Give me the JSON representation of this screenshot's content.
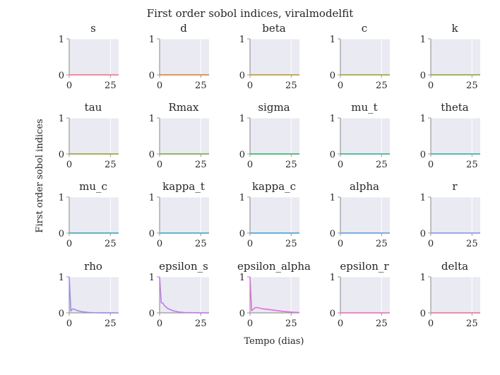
{
  "figure": {
    "title": "First order sobol indices, viralmodelfit",
    "xlabel": "Tempo (dias)",
    "ylabel": "First order sobol indices"
  },
  "style": {
    "panel_background": "#eaeaf2",
    "grid_color": "#ffffff",
    "axis_color": "#9a9a9a"
  },
  "chart_data": {
    "type": "line",
    "grid": true,
    "xlim": [
      0,
      30
    ],
    "ylim": [
      0,
      1
    ],
    "x_ticks": [
      0,
      25
    ],
    "y_ticks": [
      0,
      1
    ],
    "x": [
      0,
      1,
      2,
      3,
      4,
      5,
      6,
      7,
      8,
      10,
      12,
      15,
      20,
      25,
      30
    ],
    "panels": [
      {
        "name": "s",
        "color": "#f77189",
        "values": [
          0,
          0,
          0,
          0,
          0,
          0,
          0,
          0,
          0,
          0,
          0,
          0,
          0,
          0,
          0
        ]
      },
      {
        "name": "d",
        "color": "#e08030",
        "values": [
          0,
          0,
          0,
          0,
          0,
          0,
          0,
          0,
          0,
          0,
          0,
          0,
          0,
          0,
          0
        ]
      },
      {
        "name": "beta",
        "color": "#bb9832",
        "values": [
          0,
          0,
          0,
          0,
          0,
          0,
          0,
          0,
          0,
          0,
          0,
          0,
          0,
          0,
          0
        ]
      },
      {
        "name": "c",
        "color": "#a4a031",
        "values": [
          0,
          0,
          0,
          0,
          0,
          0,
          0,
          0,
          0,
          0,
          0,
          0,
          0,
          0,
          0
        ]
      },
      {
        "name": "k",
        "color": "#8aa831",
        "values": [
          0,
          0,
          0,
          0,
          0,
          0,
          0,
          0,
          0,
          0,
          0,
          0,
          0,
          0,
          0
        ]
      },
      {
        "name": "tau",
        "color": "#97a431",
        "values": [
          0,
          0,
          0,
          0,
          0,
          0,
          0,
          0,
          0,
          0,
          0,
          0,
          0,
          0,
          0
        ]
      },
      {
        "name": "Rmax",
        "color": "#7aa93a",
        "values": [
          0,
          0,
          0,
          0,
          0,
          0,
          0,
          0,
          0,
          0,
          0,
          0,
          0,
          0,
          0
        ]
      },
      {
        "name": "sigma",
        "color": "#32b166",
        "values": [
          0,
          0,
          0,
          0,
          0,
          0,
          0,
          0,
          0,
          0,
          0,
          0,
          0,
          0,
          0
        ]
      },
      {
        "name": "mu_t",
        "color": "#34ae8e",
        "values": [
          0,
          0,
          0,
          0,
          0,
          0,
          0,
          0,
          0,
          0,
          0,
          0,
          0,
          0,
          0
        ]
      },
      {
        "name": "theta",
        "color": "#35aba3",
        "values": [
          0,
          0,
          0,
          0,
          0,
          0,
          0,
          0,
          0,
          0,
          0,
          0,
          0,
          0,
          0
        ]
      },
      {
        "name": "mu_c",
        "color": "#37a8b6",
        "values": [
          0,
          0,
          0,
          0,
          0,
          0,
          0,
          0,
          0,
          0,
          0,
          0,
          0,
          0,
          0
        ]
      },
      {
        "name": "kappa_t",
        "color": "#3aa6c6",
        "values": [
          0,
          0,
          0,
          0,
          0,
          0,
          0,
          0,
          0,
          0,
          0,
          0,
          0,
          0,
          0
        ]
      },
      {
        "name": "kappa_c",
        "color": "#3ea2d8",
        "values": [
          0,
          0,
          0,
          0,
          0,
          0,
          0,
          0,
          0,
          0,
          0,
          0,
          0,
          0,
          0
        ]
      },
      {
        "name": "alpha",
        "color": "#5b9ce8",
        "values": [
          0,
          0,
          0,
          0,
          0,
          0,
          0,
          0,
          0,
          0,
          0,
          0,
          0,
          0,
          0
        ]
      },
      {
        "name": "r",
        "color": "#8a94f0",
        "values": [
          0,
          0,
          0,
          0,
          0,
          0,
          0,
          0,
          0,
          0,
          0,
          0,
          0,
          0,
          0
        ]
      },
      {
        "name": "rho",
        "color": "#9f8bf4",
        "values": [
          1.0,
          0.05,
          0.11,
          0.1,
          0.08,
          0.06,
          0.05,
          0.04,
          0.03,
          0.02,
          0.01,
          0.005,
          0.002,
          0.001,
          0.0
        ]
      },
      {
        "name": "epsilon_s",
        "color": "#c477f4",
        "values": [
          1.0,
          0.28,
          0.27,
          0.2,
          0.16,
          0.12,
          0.1,
          0.08,
          0.06,
          0.04,
          0.02,
          0.01,
          0.005,
          0.002,
          0.0
        ]
      },
      {
        "name": "epsilon_alpha",
        "color": "#e46be0",
        "values": [
          1.0,
          0.06,
          0.1,
          0.14,
          0.15,
          0.14,
          0.13,
          0.12,
          0.11,
          0.1,
          0.09,
          0.07,
          0.04,
          0.02,
          0.01
        ]
      },
      {
        "name": "epsilon_r",
        "color": "#f26bbd",
        "values": [
          0,
          0,
          0,
          0,
          0,
          0,
          0,
          0,
          0,
          0,
          0,
          0,
          0,
          0,
          0
        ]
      },
      {
        "name": "delta",
        "color": "#f5709a",
        "values": [
          0,
          0,
          0,
          0,
          0,
          0,
          0,
          0,
          0,
          0,
          0,
          0,
          0,
          0,
          0
        ]
      }
    ]
  }
}
